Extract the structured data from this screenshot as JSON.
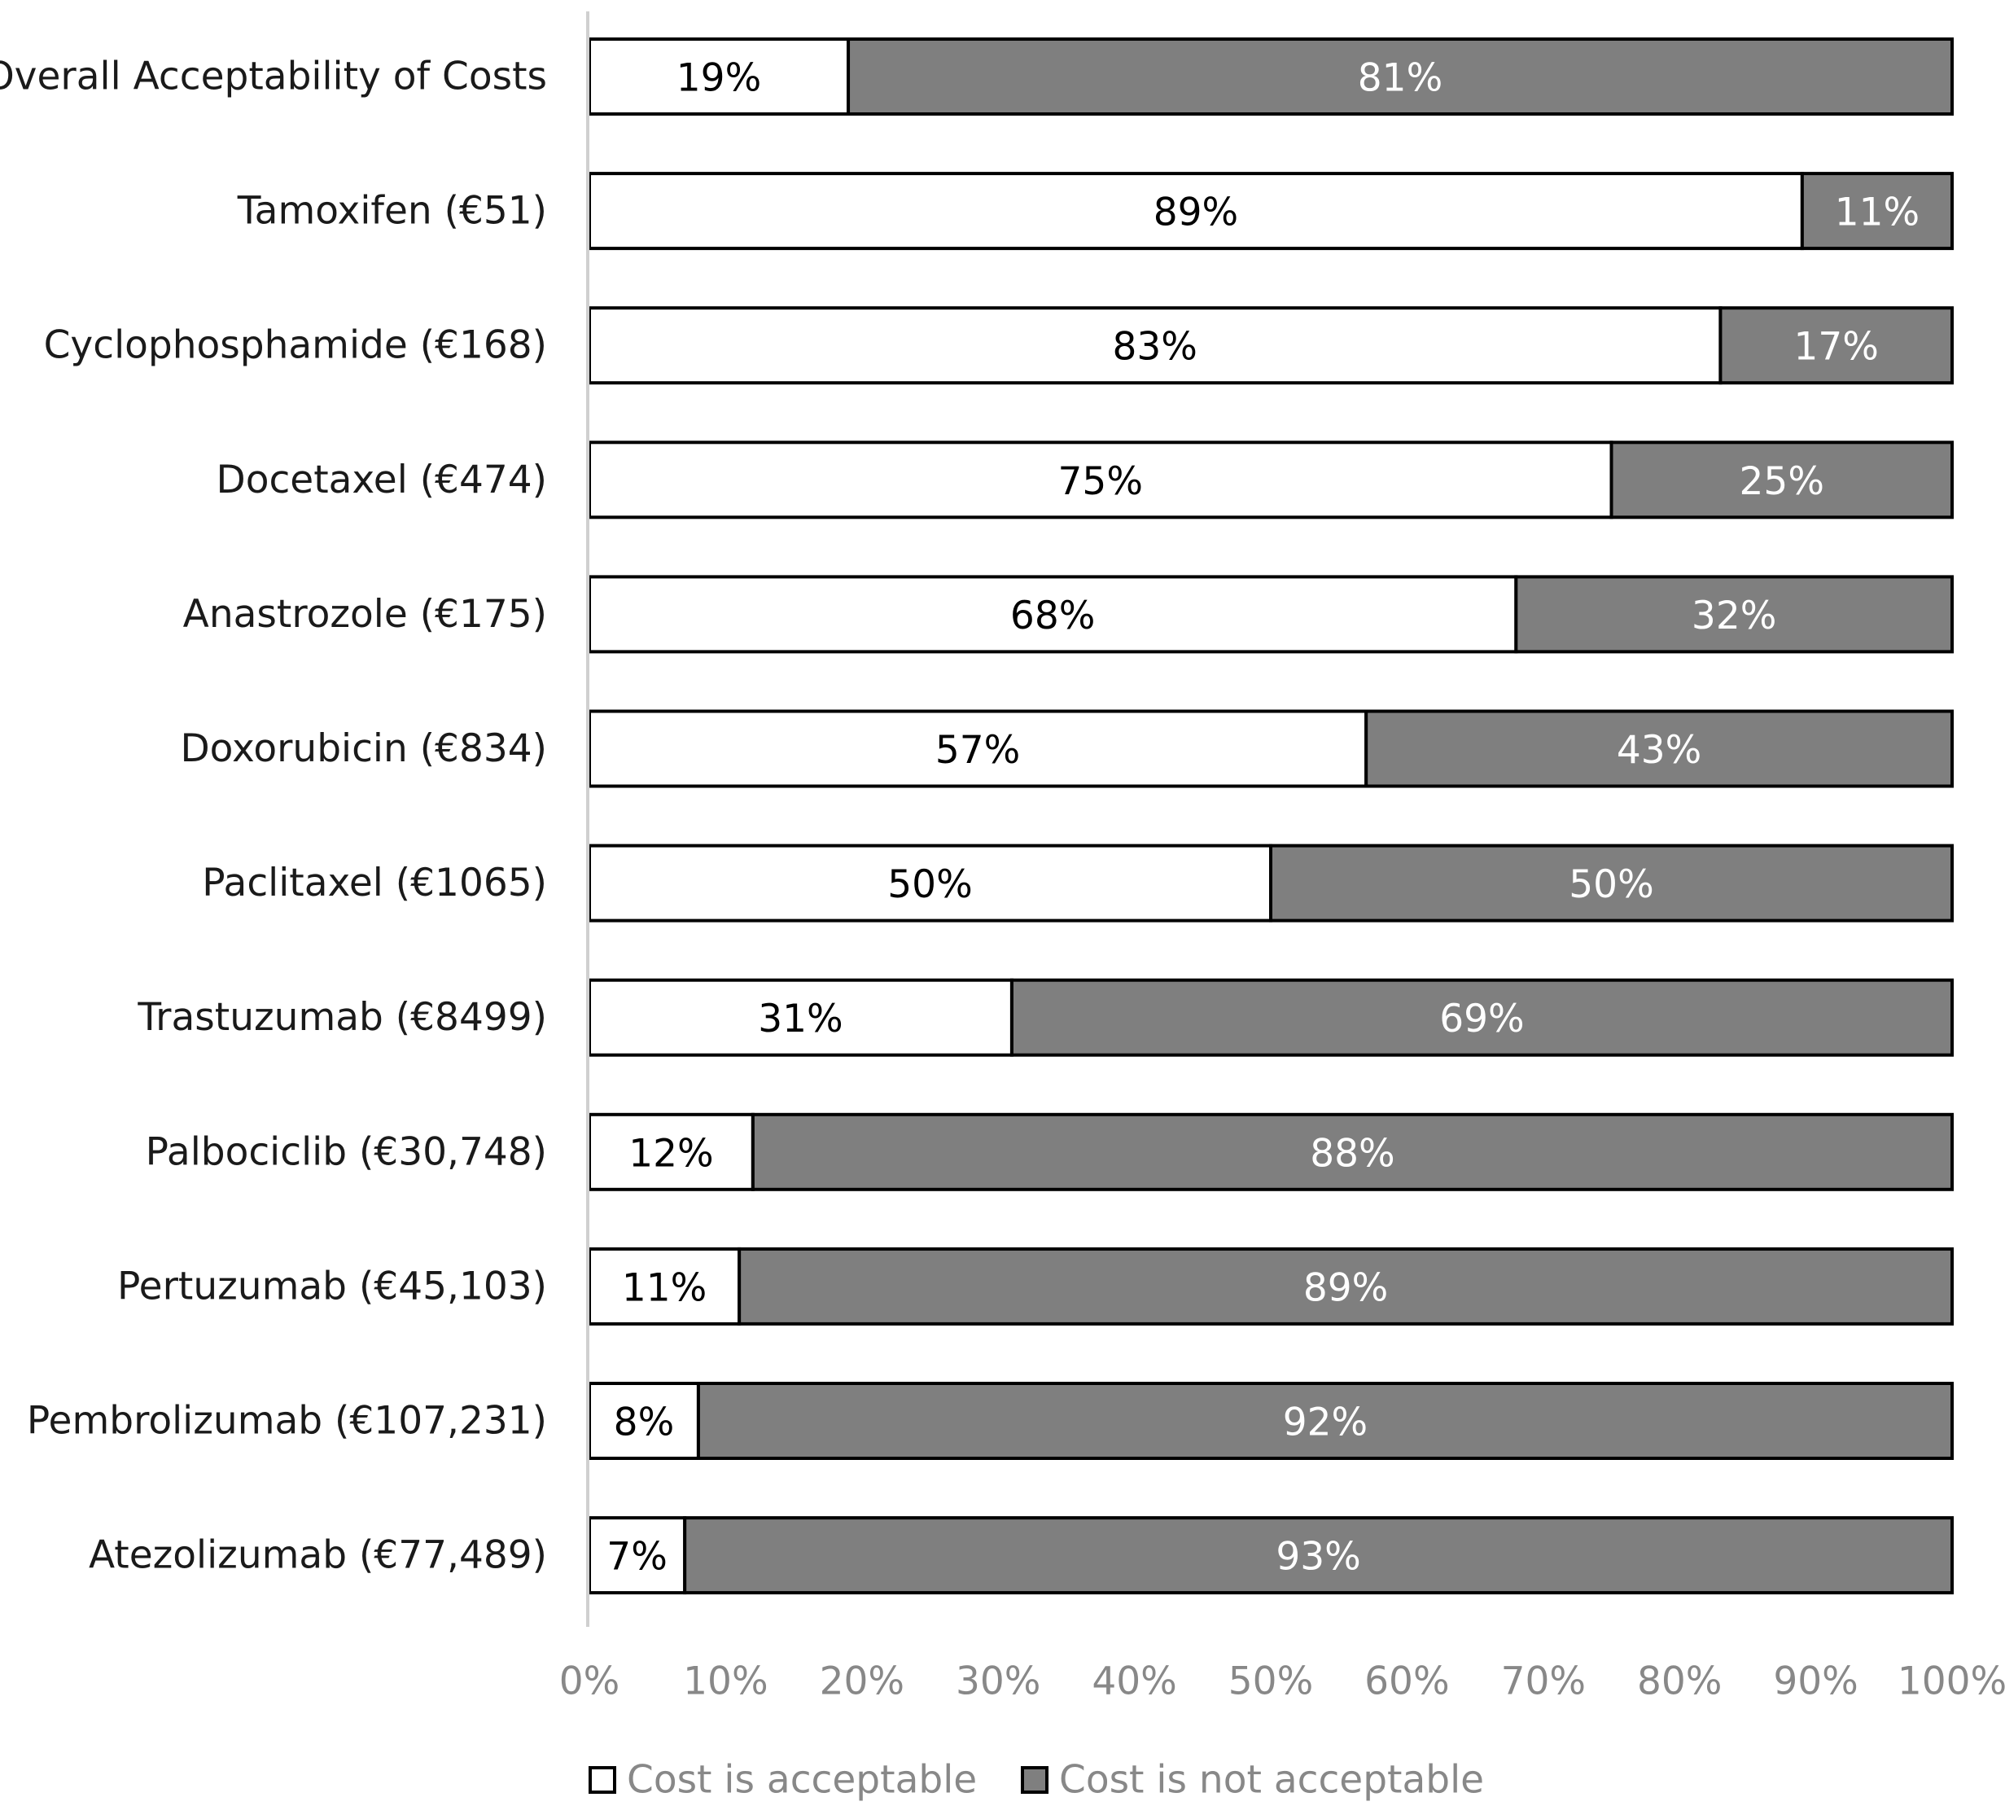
{
  "chart_data": {
    "type": "bar",
    "orientation": "horizontal",
    "stacked": true,
    "percent_stacked": true,
    "categories": [
      "Overall Acceptability of Costs",
      "Tamoxifen (€51)",
      "Cyclophosphamide (€168)",
      "Docetaxel (€474)",
      "Anastrozole (€175)",
      "Doxorubicin (€834)",
      "Paclitaxel (€1065)",
      "Trastuzumab (€8499)",
      "Palbociclib (€30,748)",
      "Pertuzumab (€45,103)",
      "Pembrolizumab (€107,231)",
      "Atezolizumab (€77,489)"
    ],
    "series": [
      {
        "name": "Cost is acceptable",
        "color": "#ffffff",
        "label_color": "#000000",
        "values": [
          19,
          89,
          83,
          75,
          68,
          57,
          50,
          31,
          12,
          11,
          8,
          7
        ],
        "labels": [
          "19%",
          "89%",
          "83%",
          "75%",
          "68%",
          "57%",
          "50%",
          "31%",
          "12%",
          "11%",
          "8%",
          "7%"
        ]
      },
      {
        "name": "Cost is not acceptable",
        "color": "#7f7f7f",
        "label_color": "#ffffff",
        "values": [
          81,
          11,
          17,
          25,
          32,
          43,
          50,
          69,
          88,
          89,
          92,
          93
        ],
        "labels": [
          "81%",
          "11%",
          "17%",
          "25%",
          "32%",
          "43%",
          "50%",
          "69%",
          "88%",
          "89%",
          "92%",
          "93%"
        ]
      }
    ],
    "x_ticks": [
      "0%",
      "10%",
      "20%",
      "30%",
      "40%",
      "50%",
      "60%",
      "70%",
      "80%",
      "90%",
      "100%"
    ],
    "xlim": [
      0,
      100
    ],
    "grid": false,
    "legend_position": "bottom"
  }
}
